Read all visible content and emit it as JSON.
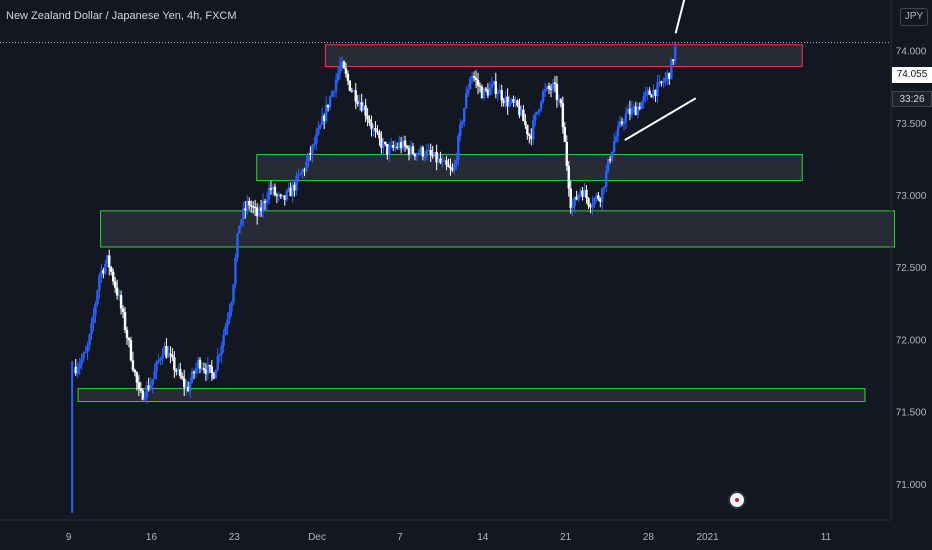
{
  "header": {
    "title": "New Zealand Dollar / Japanese Yen, 4h, FXCM",
    "currency": "JPY"
  },
  "price_scale": {
    "current_price": "74.055",
    "countdown": "33:26"
  },
  "colors": {
    "background": "#131722",
    "candle_up": "#2962ff",
    "candle_down": "#ffffff",
    "resistance_zone": "#f23645",
    "support_zone": "#2fd13f",
    "zone_fill": "#2a2e39",
    "annotation": "#ffffff"
  },
  "chart_data": {
    "type": "candlestick",
    "symbol": "NZDJPY",
    "timeframe": "4h",
    "source": "FXCM",
    "y_ticks": [
      "71.000",
      "71.500",
      "72.000",
      "72.500",
      "73.000",
      "73.500",
      "74.000"
    ],
    "ylim": [
      70.75,
      74.35
    ],
    "x_ticks": [
      {
        "label": "9",
        "day": 9
      },
      {
        "label": "16",
        "day": 16
      },
      {
        "label": "23",
        "day": 23
      },
      {
        "label": "Dec",
        "day": 30
      },
      {
        "label": "7",
        "day": 37
      },
      {
        "label": "14",
        "day": 44
      },
      {
        "label": "21",
        "day": 51
      },
      {
        "label": "28",
        "day": 58
      },
      {
        "label": "2021",
        "day": 63
      },
      {
        "label": "11",
        "day": 73
      }
    ],
    "xlim": [
      3.2,
      78.5
    ],
    "grid": false,
    "price_path": [
      [
        9.3,
        70.8
      ],
      [
        9.5,
        71.8
      ],
      [
        10.5,
        71.9
      ],
      [
        11.0,
        72.1
      ],
      [
        11.6,
        72.45
      ],
      [
        12.3,
        72.55
      ],
      [
        13.2,
        72.3
      ],
      [
        14.0,
        72.0
      ],
      [
        15.0,
        71.6
      ],
      [
        16.0,
        71.7
      ],
      [
        17.0,
        71.95
      ],
      [
        18.0,
        71.8
      ],
      [
        19.0,
        71.65
      ],
      [
        20.0,
        71.85
      ],
      [
        21.2,
        71.75
      ],
      [
        22.0,
        72.0
      ],
      [
        22.8,
        72.3
      ],
      [
        23.4,
        72.8
      ],
      [
        24.2,
        72.95
      ],
      [
        25.0,
        72.85
      ],
      [
        26.0,
        73.05
      ],
      [
        27.0,
        72.95
      ],
      [
        28.0,
        73.05
      ],
      [
        29.0,
        73.2
      ],
      [
        30.0,
        73.4
      ],
      [
        31.0,
        73.65
      ],
      [
        32.0,
        73.9
      ],
      [
        32.8,
        73.75
      ],
      [
        34.0,
        73.6
      ],
      [
        35.0,
        73.4
      ],
      [
        36.0,
        73.3
      ],
      [
        37.0,
        73.35
      ],
      [
        38.0,
        73.3
      ],
      [
        39.0,
        73.3
      ],
      [
        40.0,
        73.25
      ],
      [
        41.5,
        73.15
      ],
      [
        42.3,
        73.55
      ],
      [
        43.0,
        73.85
      ],
      [
        44.0,
        73.7
      ],
      [
        45.0,
        73.75
      ],
      [
        46.0,
        73.65
      ],
      [
        47.0,
        73.6
      ],
      [
        48.0,
        73.4
      ],
      [
        49.0,
        73.7
      ],
      [
        50.0,
        73.75
      ],
      [
        50.6,
        73.6
      ],
      [
        51.0,
        73.3
      ],
      [
        51.5,
        72.9
      ],
      [
        52.3,
        73.05
      ],
      [
        53.0,
        72.95
      ],
      [
        54.0,
        73.0
      ],
      [
        55.0,
        73.35
      ],
      [
        56.0,
        73.55
      ],
      [
        57.0,
        73.6
      ],
      [
        58.0,
        73.7
      ],
      [
        59.0,
        73.75
      ],
      [
        59.8,
        73.85
      ],
      [
        60.4,
        74.055
      ]
    ],
    "zones": [
      {
        "kind": "resistance",
        "day_start": 30.7,
        "day_end": 71.0,
        "price_low": 73.89,
        "price_high": 74.04
      },
      {
        "kind": "support",
        "day_start": 24.9,
        "day_end": 71.0,
        "price_low": 73.1,
        "price_high": 73.28
      },
      {
        "kind": "support",
        "day_start": 11.7,
        "day_end": 78.8,
        "price_low": 72.64,
        "price_high": 72.89
      },
      {
        "kind": "support",
        "day_start": 9.8,
        "day_end": 76.3,
        "price_low": 71.57,
        "price_high": 71.66
      }
    ],
    "trendline": {
      "day_start": 56.0,
      "day_end": 62.0,
      "price_start": 73.38,
      "price_end": 73.67
    },
    "arrow": {
      "day_start": 60.3,
      "day_end": 61.3,
      "price_start": 74.12,
      "price_end": 74.44
    },
    "current_price_line": 74.055
  }
}
